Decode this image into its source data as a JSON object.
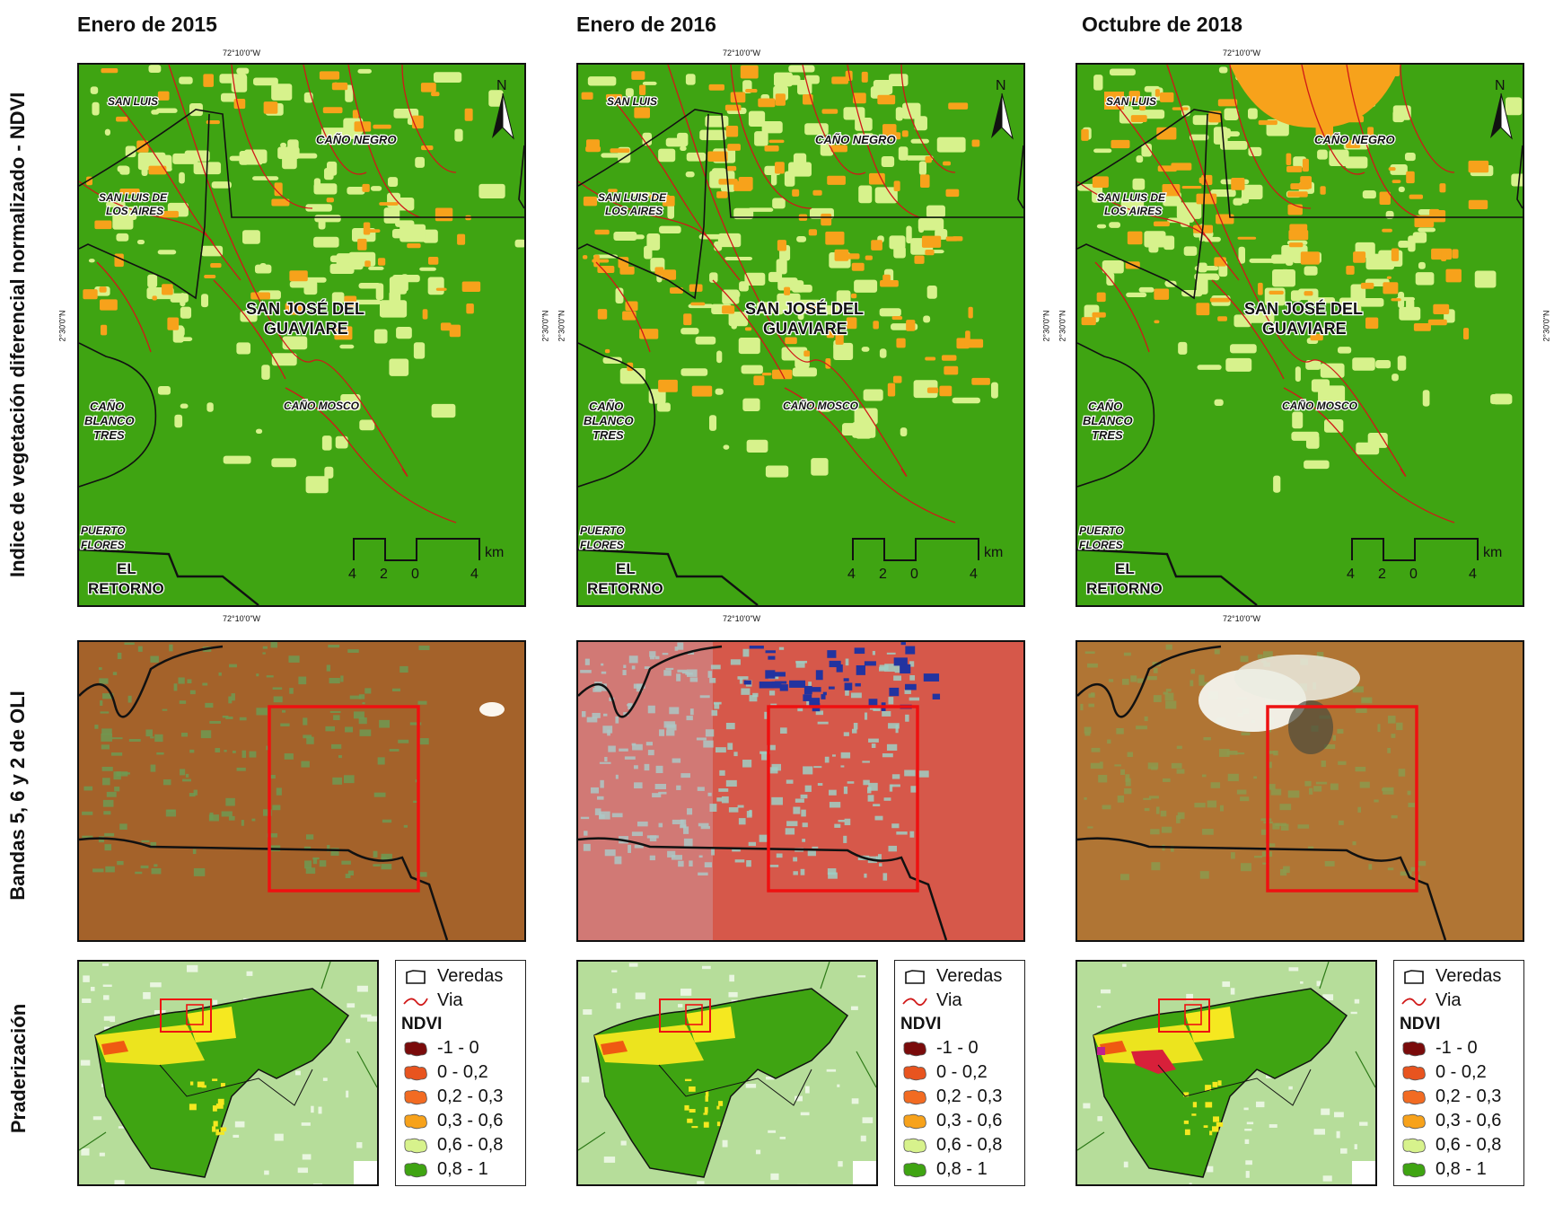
{
  "columns": [
    {
      "title": "Enero de 2015",
      "variant": "2015"
    },
    {
      "title": "Enero de 2016",
      "variant": "2016"
    },
    {
      "title": "Octubre de 2018",
      "variant": "2018"
    }
  ],
  "row_labels": {
    "ndvi": "Indice de vegetación diferencial normalizado - NDVI",
    "oli": "Bandas 5, 6 y 2 de OLI",
    "praderizacion": "Praderización"
  },
  "coords": {
    "lon_top": "72°10'0\"W",
    "lon_bottom": "72°10'0\"W",
    "lat": "2°30'0\"N"
  },
  "map_labels": {
    "san_luis": "SAN LUIS",
    "cano_negro": "CAÑO NEGRO",
    "san_luis_aires_1": "SAN LUIS DE",
    "san_luis_aires_2": "LOS AIRES",
    "sjg_1": "SAN JOSÉ DEL",
    "sjg_2": "GUAVIARE",
    "cano_mosco": "CAÑO MOSCO",
    "cbt_1": "CAÑO",
    "cbt_2": "BLANCO",
    "cbt_3": "TRES",
    "pf_1": "PUERTO",
    "pf_2": "FLORES",
    "er_1": "EL",
    "er_2": "RETORNO",
    "north": "N"
  },
  "scale_bar": {
    "ticks": [
      "4",
      "2",
      "0",
      "4"
    ],
    "unit": "km"
  },
  "legend": {
    "veredas": "Veredas",
    "via": "Via",
    "title": "NDVI",
    "classes": [
      {
        "label": "-1 - 0",
        "color": "#7a0b0b"
      },
      {
        "label": "0 - 0,2",
        "color": "#e8541f"
      },
      {
        "label": "0,2 - 0,3",
        "color": "#f26b22"
      },
      {
        "label": "0,3 - 0,6",
        "color": "#f7a21b"
      },
      {
        "label": "0,6 - 0,8",
        "color": "#d7f28c"
      },
      {
        "label": "0,8 - 1",
        "color": "#3fa412"
      }
    ]
  },
  "colors": {
    "ndvi_background": "#3fa412",
    "light_veg": "#d7f28c",
    "orange": "#f7a21b",
    "road": "#d01818",
    "inset_frame": "#ee1111",
    "oli_2015": "#a4622a",
    "oli_2016": "#d6584a",
    "oli_2018": "#b07534",
    "context_bg": "#b6dd9a"
  }
}
